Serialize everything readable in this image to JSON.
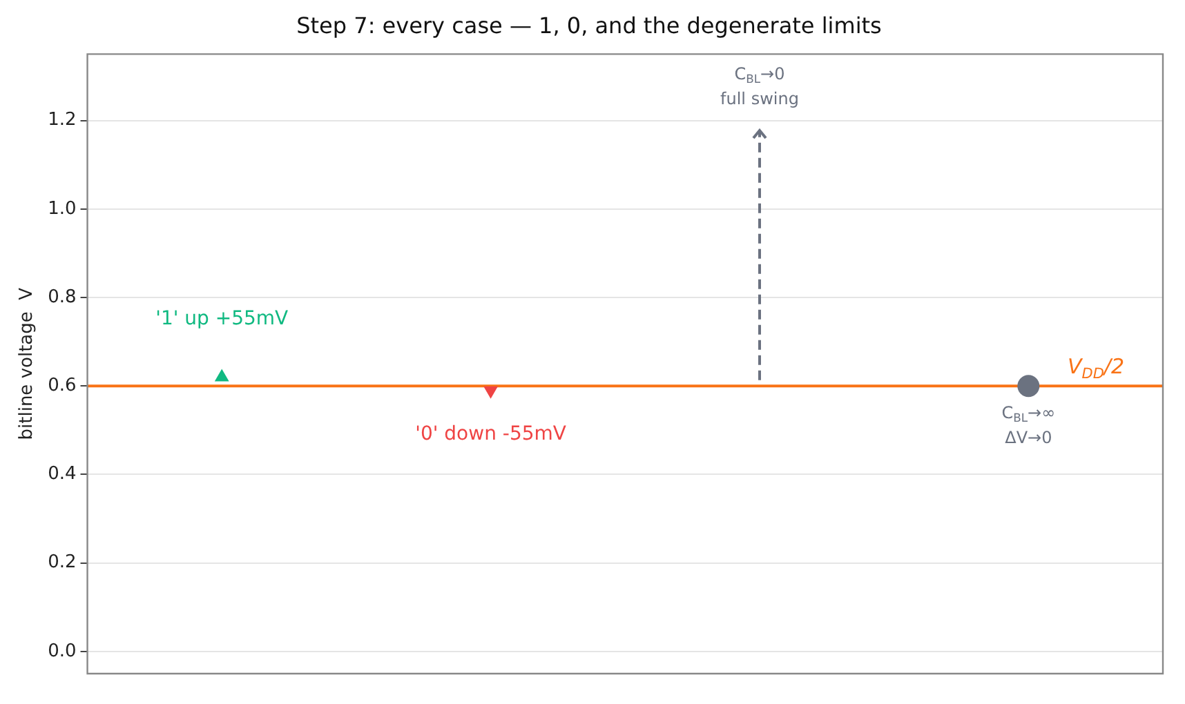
{
  "chart_data": {
    "type": "scatter",
    "title": "Step 7: every case — 1, 0, and the degenerate limits",
    "ylabel": "bitline voltage  V",
    "categories": [
      null,
      null,
      null,
      null
    ],
    "series": [
      {
        "color": "#10b981",
        "values": [
          0.62,
          null,
          null,
          null
        ],
        "marker": "triangle"
      },
      {
        "color": "#ef4444",
        "values": [
          null,
          0.59,
          null,
          null
        ],
        "marker": "triangle"
      },
      {
        "color": "#6b7280",
        "values": [
          null,
          null,
          null,
          0.6
        ],
        "marker": "circle"
      }
    ],
    "ref_lines": [
      {
        "axis": "y",
        "value": 0.6,
        "label": "V$_{DD}$/2",
        "color": "#f97316"
      }
    ],
    "annotations": [
      "'1' up +55mV",
      "'0' down -55mV",
      "C$_{BL}$→0\nfull swing",
      "C$_{BL}$→∞\nΔV→0"
    ],
    "ylim": [
      -0.05,
      1.35
    ],
    "yticks": [
      {
        "value": 0,
        "label": "0.0"
      },
      0.2,
      0.4,
      0.6,
      0.8,
      {
        "value": 1,
        "label": "1.0"
      },
      1.2
    ],
    "grid": "y",
    "tick_labels": "y"
  }
}
